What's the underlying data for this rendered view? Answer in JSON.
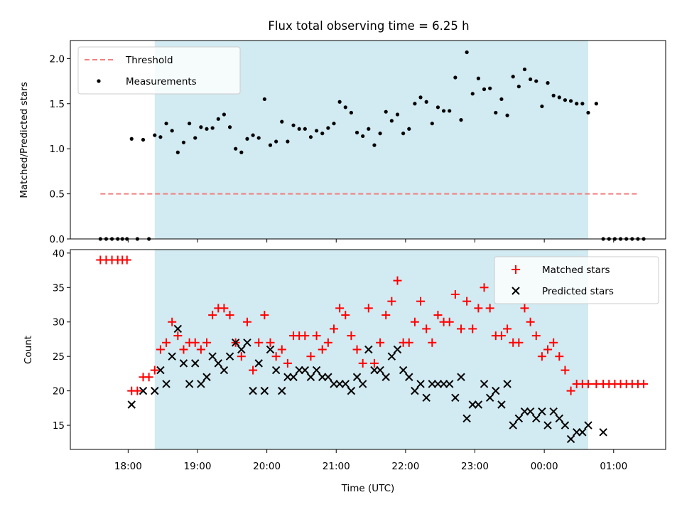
{
  "chart_data": {
    "title": "Flux total observing time = 6.25 h",
    "xlabel": "Time (UTC)",
    "xticks": [
      {
        "t": 0.0,
        "label": "18:00"
      },
      {
        "t": 1.0,
        "label": "19:00"
      },
      {
        "t": 2.0,
        "label": "20:00"
      },
      {
        "t": 3.0,
        "label": "21:00"
      },
      {
        "t": 4.0,
        "label": "22:00"
      },
      {
        "t": 5.0,
        "label": "23:00"
      },
      {
        "t": 6.0,
        "label": "00:00"
      },
      {
        "t": 7.0,
        "label": "01:00"
      }
    ],
    "xlim": [
      "17:10",
      "01:45"
    ],
    "observing_window": {
      "start": "18:23",
      "end": "00:38",
      "color": "#add8e6"
    },
    "top": {
      "type": "scatter",
      "ylabel": "Matched/Predicted stars",
      "ylim": [
        0,
        2.2
      ],
      "yticks": [
        "0.0",
        "0.5",
        "1.0",
        "1.5",
        "2.0"
      ],
      "threshold": {
        "name": "Threshold",
        "value": 0.5,
        "color": "#f08080"
      },
      "legend": {
        "position": "top-left",
        "entries": [
          "Threshold",
          "Measurements"
        ]
      },
      "series": [
        {
          "name": "Measurements",
          "color": "#000000",
          "x": [
            "17:36",
            "17:41",
            "17:46",
            "17:51",
            "17:55",
            "17:59",
            "18:03",
            "18:08",
            "18:13",
            "18:18",
            "18:23",
            "18:28",
            "18:33",
            "18:38",
            "18:43",
            "18:48",
            "18:53",
            "18:58",
            "19:03",
            "19:08",
            "19:13",
            "19:18",
            "19:23",
            "19:28",
            "19:33",
            "19:38",
            "19:43",
            "19:48",
            "19:53",
            "19:58",
            "20:03",
            "20:08",
            "20:13",
            "20:18",
            "20:23",
            "20:28",
            "20:33",
            "20:38",
            "20:43",
            "20:48",
            "20:53",
            "20:58",
            "21:03",
            "21:08",
            "21:13",
            "21:18",
            "21:23",
            "21:28",
            "21:33",
            "21:38",
            "21:43",
            "21:48",
            "21:53",
            "21:58",
            "22:03",
            "22:08",
            "22:13",
            "22:18",
            "22:23",
            "22:28",
            "22:33",
            "22:38",
            "22:43",
            "22:48",
            "22:53",
            "22:58",
            "23:03",
            "23:08",
            "23:13",
            "23:18",
            "23:23",
            "23:28",
            "23:33",
            "23:38",
            "23:43",
            "23:48",
            "23:53",
            "23:58",
            "00:03",
            "00:08",
            "00:13",
            "00:18",
            "00:23",
            "00:28",
            "00:33",
            "00:38",
            "00:45",
            "00:51",
            "00:56",
            "01:01",
            "01:06",
            "01:11",
            "01:16",
            "01:21",
            "01:26"
          ],
          "y": [
            0.0,
            0.0,
            0.0,
            0.0,
            0.0,
            0.0,
            1.11,
            0.0,
            1.1,
            0.0,
            1.15,
            1.13,
            1.28,
            1.2,
            0.96,
            1.07,
            1.28,
            1.12,
            1.24,
            1.22,
            1.23,
            1.33,
            1.38,
            1.24,
            1.0,
            0.96,
            1.11,
            1.15,
            1.12,
            1.55,
            1.04,
            1.08,
            1.3,
            1.08,
            1.26,
            1.22,
            1.22,
            1.13,
            1.2,
            1.17,
            1.23,
            1.28,
            1.52,
            1.46,
            1.4,
            1.18,
            1.14,
            1.22,
            1.04,
            1.17,
            1.41,
            1.31,
            1.38,
            1.17,
            1.22,
            1.5,
            1.57,
            1.52,
            1.28,
            1.46,
            1.42,
            1.42,
            1.79,
            1.32,
            2.07,
            1.61,
            1.78,
            1.66,
            1.67,
            1.4,
            1.55,
            1.37,
            1.8,
            1.69,
            1.88,
            1.77,
            1.75,
            1.47,
            1.73,
            1.59,
            1.57,
            1.54,
            1.53,
            1.5,
            1.5,
            1.4,
            1.5,
            0.0,
            0.0,
            0.0,
            0.0,
            0.0,
            0.0,
            0.0,
            0.0
          ]
        }
      ]
    },
    "bottom": {
      "type": "scatter",
      "ylabel": "Count",
      "ylim": [
        11.5,
        40.5
      ],
      "yticks": [
        "15",
        "20",
        "25",
        "30",
        "35",
        "40"
      ],
      "legend": {
        "position": "top-right",
        "entries": [
          "Matched stars",
          "Predicted stars"
        ]
      },
      "series": [
        {
          "name": "Matched stars",
          "marker": "plus",
          "color": "#ff0000",
          "x": [
            "17:36",
            "17:41",
            "17:46",
            "17:51",
            "17:55",
            "17:59",
            "18:03",
            "18:08",
            "18:13",
            "18:18",
            "18:23",
            "18:28",
            "18:33",
            "18:38",
            "18:43",
            "18:48",
            "18:53",
            "18:58",
            "19:03",
            "19:08",
            "19:13",
            "19:18",
            "19:23",
            "19:28",
            "19:33",
            "19:38",
            "19:43",
            "19:48",
            "19:53",
            "19:58",
            "20:03",
            "20:08",
            "20:13",
            "20:18",
            "20:23",
            "20:28",
            "20:33",
            "20:38",
            "20:43",
            "20:48",
            "20:53",
            "20:58",
            "21:03",
            "21:08",
            "21:13",
            "21:18",
            "21:23",
            "21:28",
            "21:33",
            "21:38",
            "21:43",
            "21:48",
            "21:53",
            "21:58",
            "22:03",
            "22:08",
            "22:13",
            "22:18",
            "22:23",
            "22:28",
            "22:33",
            "22:38",
            "22:43",
            "22:48",
            "22:53",
            "22:58",
            "23:03",
            "23:08",
            "23:13",
            "23:18",
            "23:23",
            "23:28",
            "23:33",
            "23:38",
            "23:43",
            "23:48",
            "23:53",
            "23:58",
            "00:03",
            "00:08",
            "00:13",
            "00:18",
            "00:23",
            "00:28",
            "00:33",
            "00:38",
            "00:45",
            "00:51",
            "00:56",
            "01:01",
            "01:06",
            "01:11",
            "01:16",
            "01:21",
            "01:26"
          ],
          "y": [
            39,
            39,
            39,
            39,
            39,
            39,
            20,
            20,
            22,
            22,
            23,
            26,
            27,
            30,
            28,
            26,
            27,
            27,
            26,
            27,
            31,
            32,
            32,
            31,
            27,
            25,
            30,
            23,
            27,
            31,
            27,
            25,
            26,
            24,
            28,
            28,
            28,
            25,
            28,
            26,
            27,
            29,
            32,
            31,
            28,
            26,
            24,
            32,
            24,
            27,
            31,
            33,
            36,
            27,
            27,
            30,
            33,
            29,
            27,
            31,
            30,
            30,
            34,
            29,
            33,
            29,
            32,
            35,
            32,
            28,
            28,
            29,
            27,
            27,
            32,
            30,
            28,
            25,
            26,
            27,
            25,
            23,
            20,
            21,
            21,
            21,
            21,
            21,
            21,
            21,
            21,
            21,
            21,
            21,
            21
          ]
        },
        {
          "name": "Predicted stars",
          "marker": "x",
          "color": "#000000",
          "x": [
            "18:03",
            "18:13",
            "18:23",
            "18:28",
            "18:33",
            "18:38",
            "18:43",
            "18:48",
            "18:53",
            "18:58",
            "19:03",
            "19:08",
            "19:13",
            "19:18",
            "19:23",
            "19:28",
            "19:33",
            "19:38",
            "19:43",
            "19:48",
            "19:53",
            "19:58",
            "20:03",
            "20:08",
            "20:13",
            "20:18",
            "20:23",
            "20:28",
            "20:33",
            "20:38",
            "20:43",
            "20:48",
            "20:53",
            "20:58",
            "21:03",
            "21:08",
            "21:13",
            "21:18",
            "21:23",
            "21:28",
            "21:33",
            "21:38",
            "21:43",
            "21:48",
            "21:53",
            "21:58",
            "22:03",
            "22:08",
            "22:13",
            "22:18",
            "22:23",
            "22:28",
            "22:33",
            "22:38",
            "22:43",
            "22:48",
            "22:53",
            "22:58",
            "23:03",
            "23:08",
            "23:13",
            "23:18",
            "23:23",
            "23:28",
            "23:33",
            "23:38",
            "23:43",
            "23:48",
            "23:53",
            "23:58",
            "00:03",
            "00:08",
            "00:13",
            "00:18",
            "00:23",
            "00:28",
            "00:33",
            "00:38",
            "00:51"
          ],
          "y": [
            18,
            20,
            20,
            23,
            21,
            25,
            29,
            24,
            21,
            24,
            21,
            22,
            25,
            24,
            23,
            25,
            27,
            26,
            27,
            20,
            24,
            20,
            26,
            23,
            20,
            22,
            22,
            23,
            23,
            22,
            23,
            22,
            22,
            21,
            21,
            21,
            20,
            22,
            21,
            26,
            23,
            23,
            22,
            25,
            26,
            23,
            22,
            20,
            21,
            19,
            21,
            21,
            21,
            21,
            19,
            22,
            16,
            18,
            18,
            21,
            19,
            20,
            18,
            21,
            15,
            16,
            17,
            17,
            16,
            17,
            15,
            17,
            16,
            15,
            13,
            14,
            14,
            15,
            14
          ]
        }
      ]
    }
  }
}
